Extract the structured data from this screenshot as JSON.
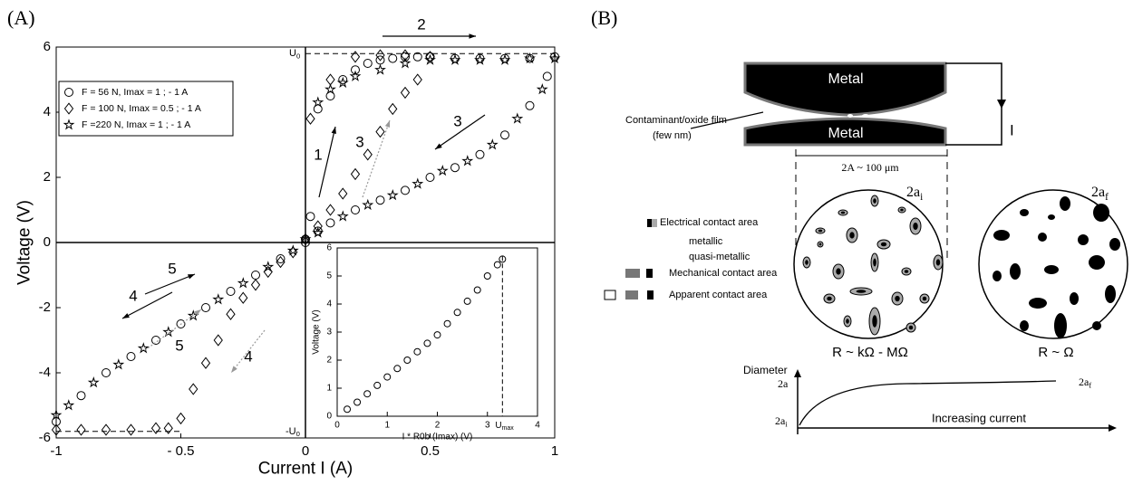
{
  "panel_labels": [
    "(A)",
    "(B)"
  ],
  "chart_data": [
    {
      "type": "scatter",
      "x_label": "Current I (A)",
      "y_label": "Voltage (V)",
      "xlim": [
        -1,
        1
      ],
      "ylim": [
        -6,
        6
      ],
      "xticks": [
        -1,
        {
          "value": -0.5,
          "label": "- 0.5"
        },
        0,
        0.5,
        1
      ],
      "yticks": [
        -6,
        -4,
        -2,
        0,
        2,
        4,
        6
      ],
      "u0_labels": [
        {
          "text": "U",
          "sub": "0"
        },
        {
          "text": "-U",
          "sub": "0"
        }
      ],
      "annotations": [
        "2",
        "3",
        "1",
        "3",
        "5",
        "4",
        "5",
        "4"
      ],
      "series": [
        {
          "name": "F = 56 N, Imax = 1 ; - 1 A",
          "marker": "circle",
          "color": "#000000",
          "x": [
            0,
            0.02,
            0.05,
            0.1,
            0.15,
            0.2,
            0.25,
            0.3,
            0.35,
            0.4,
            0.45,
            0.5,
            0.6,
            0.7,
            0.8,
            0.9,
            1,
            0.97,
            0.9,
            0.8,
            0.7,
            0.6,
            0.5,
            0.4,
            0.3,
            0.2,
            0.1,
            0.05,
            0,
            -0.1,
            -0.2,
            -0.3,
            -0.4,
            -0.5,
            -0.6,
            -0.7,
            -0.8,
            -0.9,
            -1
          ],
          "values": [
            0.1,
            0.8,
            4.1,
            4.5,
            5.0,
            5.3,
            5.5,
            5.6,
            5.65,
            5.7,
            5.7,
            5.7,
            5.65,
            5.65,
            5.65,
            5.65,
            5.7,
            5.1,
            4.2,
            3.3,
            2.7,
            2.3,
            2.0,
            1.6,
            1.3,
            1.0,
            0.6,
            0.35,
            0,
            -0.5,
            -1.0,
            -1.5,
            -2.0,
            -2.5,
            -3.0,
            -3.5,
            -4.0,
            -4.7,
            -5.5
          ]
        },
        {
          "name": "F = 100 N, Imax = 0.5 ; - 1 A",
          "marker": "diamond",
          "color": "#000000",
          "x": [
            0.02,
            0.05,
            0.1,
            0.15,
            0.2,
            0.25,
            0.3,
            0.35,
            0.4,
            0.45,
            0.5,
            0.4,
            0.3,
            0.2,
            0.1,
            0,
            -0.05,
            -0.1,
            -0.15,
            -0.2,
            -0.25,
            -0.3,
            -0.35,
            -0.4,
            -0.45,
            -0.5,
            -0.55,
            -0.6,
            -0.7,
            -0.8,
            -0.9,
            -1
          ],
          "values": [
            3.8,
            0.5,
            1.0,
            1.5,
            2.1,
            2.7,
            3.4,
            4.1,
            4.6,
            5.0,
            5.7,
            5.75,
            5.75,
            5.7,
            5.0,
            0.1,
            -0.3,
            -0.6,
            -0.9,
            -1.3,
            -1.7,
            -2.2,
            -3.0,
            -3.7,
            -4.5,
            -5.4,
            -5.7,
            -5.7,
            -5.75,
            -5.75,
            -5.75,
            -5.75
          ]
        },
        {
          "name": "F =220 N, Imax = 1 ; - 1 A",
          "marker": "star",
          "color": "#000000",
          "x": [
            0,
            0.05,
            0.1,
            0.15,
            0.2,
            0.3,
            0.4,
            0.5,
            0.6,
            0.7,
            0.8,
            0.9,
            1,
            0.95,
            0.85,
            0.75,
            0.65,
            0.55,
            0.45,
            0.35,
            0.25,
            0.15,
            0.05,
            -0.05,
            -0.15,
            -0.25,
            -0.35,
            -0.45,
            -0.55,
            -0.65,
            -0.75,
            -0.85,
            -0.95,
            -1
          ],
          "values": [
            0.1,
            4.3,
            4.7,
            4.9,
            5.1,
            5.3,
            5.5,
            5.6,
            5.6,
            5.6,
            5.6,
            5.65,
            5.65,
            4.7,
            3.8,
            3.0,
            2.5,
            2.2,
            1.8,
            1.45,
            1.15,
            0.8,
            0.3,
            -0.25,
            -0.75,
            -1.25,
            -1.75,
            -2.25,
            -2.75,
            -3.25,
            -3.75,
            -4.3,
            -5.0,
            -5.3
          ]
        }
      ]
    },
    {
      "type": "scatter",
      "x_label": "I * R0b (Imax) (V)",
      "y_label": "Voltage (V)",
      "xlim": [
        0,
        4
      ],
      "ylim": [
        0,
        6
      ],
      "xticks": [
        0,
        1,
        2,
        3,
        4
      ],
      "yticks": [
        0,
        1,
        2,
        3,
        4,
        5,
        6
      ],
      "umax_label": "U",
      "umax_sub": "max",
      "umax": 3.3,
      "series": [
        {
          "marker": "circle",
          "color": "#000000",
          "x": [
            0.2,
            0.4,
            0.6,
            0.8,
            1.0,
            1.2,
            1.4,
            1.6,
            1.8,
            2.0,
            2.2,
            2.4,
            2.6,
            2.8,
            3.0,
            3.2,
            3.3
          ],
          "values": [
            0.25,
            0.5,
            0.8,
            1.1,
            1.4,
            1.7,
            2.0,
            2.3,
            2.6,
            2.9,
            3.3,
            3.7,
            4.1,
            4.5,
            5.0,
            5.4,
            5.6
          ]
        }
      ]
    }
  ],
  "diagram": {
    "metal": [
      "Metal",
      "Metal"
    ],
    "film": [
      "Contaminant/oxide film",
      "(few nm)"
    ],
    "current": "I",
    "width": "2A ~ 100 μm",
    "spot_i": {
      "text": "2a",
      "sub": "i"
    },
    "spot_f": {
      "text": "2a",
      "sub": "f"
    },
    "legend": [
      "Electrical contact area",
      "metallic",
      "quasi-metallic",
      "Mechanical contact area",
      "Apparent contact area"
    ],
    "resistance": [
      "R ~ kΩ - MΩ",
      "R ~ Ω"
    ],
    "graph": {
      "y_label": "Diameter",
      "top": "2a",
      "end": {
        "text": "2a",
        "sub": "f"
      },
      "start": {
        "text": "2a",
        "sub": "i"
      },
      "x_label": "Increasing current"
    }
  }
}
